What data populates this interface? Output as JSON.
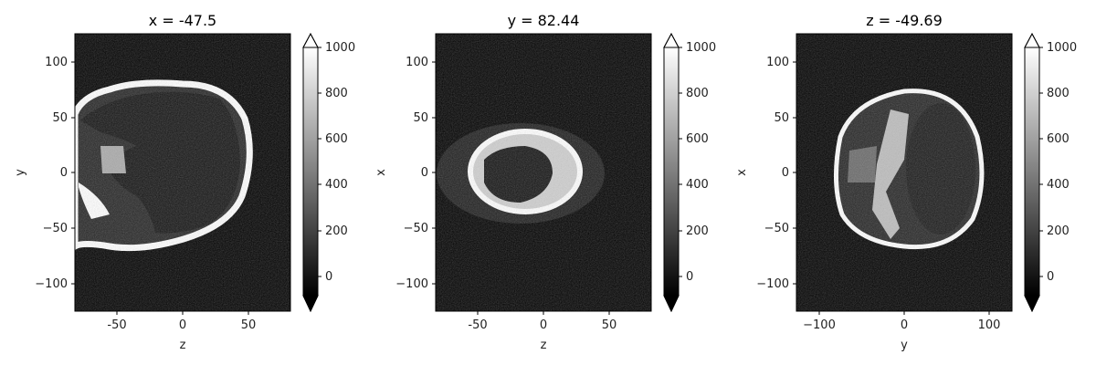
{
  "colors": {
    "background": "#000000",
    "bone": "#ffffff",
    "axes": "#000000"
  },
  "chart_data": [
    {
      "type": "heatmap",
      "title": "x = -47.5",
      "xlabel": "z",
      "ylabel": "y",
      "xlim": [
        -82,
        82
      ],
      "ylim": [
        -127,
        127
      ],
      "xticks": [
        "-50",
        "0",
        "50"
      ],
      "yticks": [
        "−100",
        "−50",
        "0",
        "50",
        "100"
      ],
      "colorbar": {
        "range": [
          -128,
          1000
        ],
        "ticks": [
          "0",
          "200",
          "400",
          "600",
          "800",
          "1000"
        ],
        "extend": "both",
        "colormap": "gray"
      },
      "view": "sagittal"
    },
    {
      "type": "heatmap",
      "title": "y = 82.44",
      "xlabel": "z",
      "ylabel": "x",
      "xlim": [
        -82,
        82
      ],
      "ylim": [
        -127,
        127
      ],
      "xticks": [
        "-50",
        "0",
        "50"
      ],
      "yticks": [
        "−100",
        "−50",
        "0",
        "50",
        "100"
      ],
      "colorbar": {
        "range": [
          -128,
          1000
        ],
        "ticks": [
          "0",
          "200",
          "400",
          "600",
          "800",
          "1000"
        ],
        "extend": "both",
        "colormap": "gray"
      },
      "view": "coronal-top"
    },
    {
      "type": "heatmap",
      "title": "z = -49.69",
      "xlabel": "y",
      "ylabel": "x",
      "xlim": [
        -127,
        127
      ],
      "ylim": [
        -127,
        127
      ],
      "xticks": [
        "−100",
        "0",
        "100"
      ],
      "yticks": [
        "−100",
        "−50",
        "0",
        "50",
        "100"
      ],
      "colorbar": {
        "range": [
          -128,
          1000
        ],
        "ticks": [
          "0",
          "200",
          "400",
          "600",
          "800",
          "1000"
        ],
        "extend": "both",
        "colormap": "gray"
      },
      "view": "axial"
    }
  ]
}
